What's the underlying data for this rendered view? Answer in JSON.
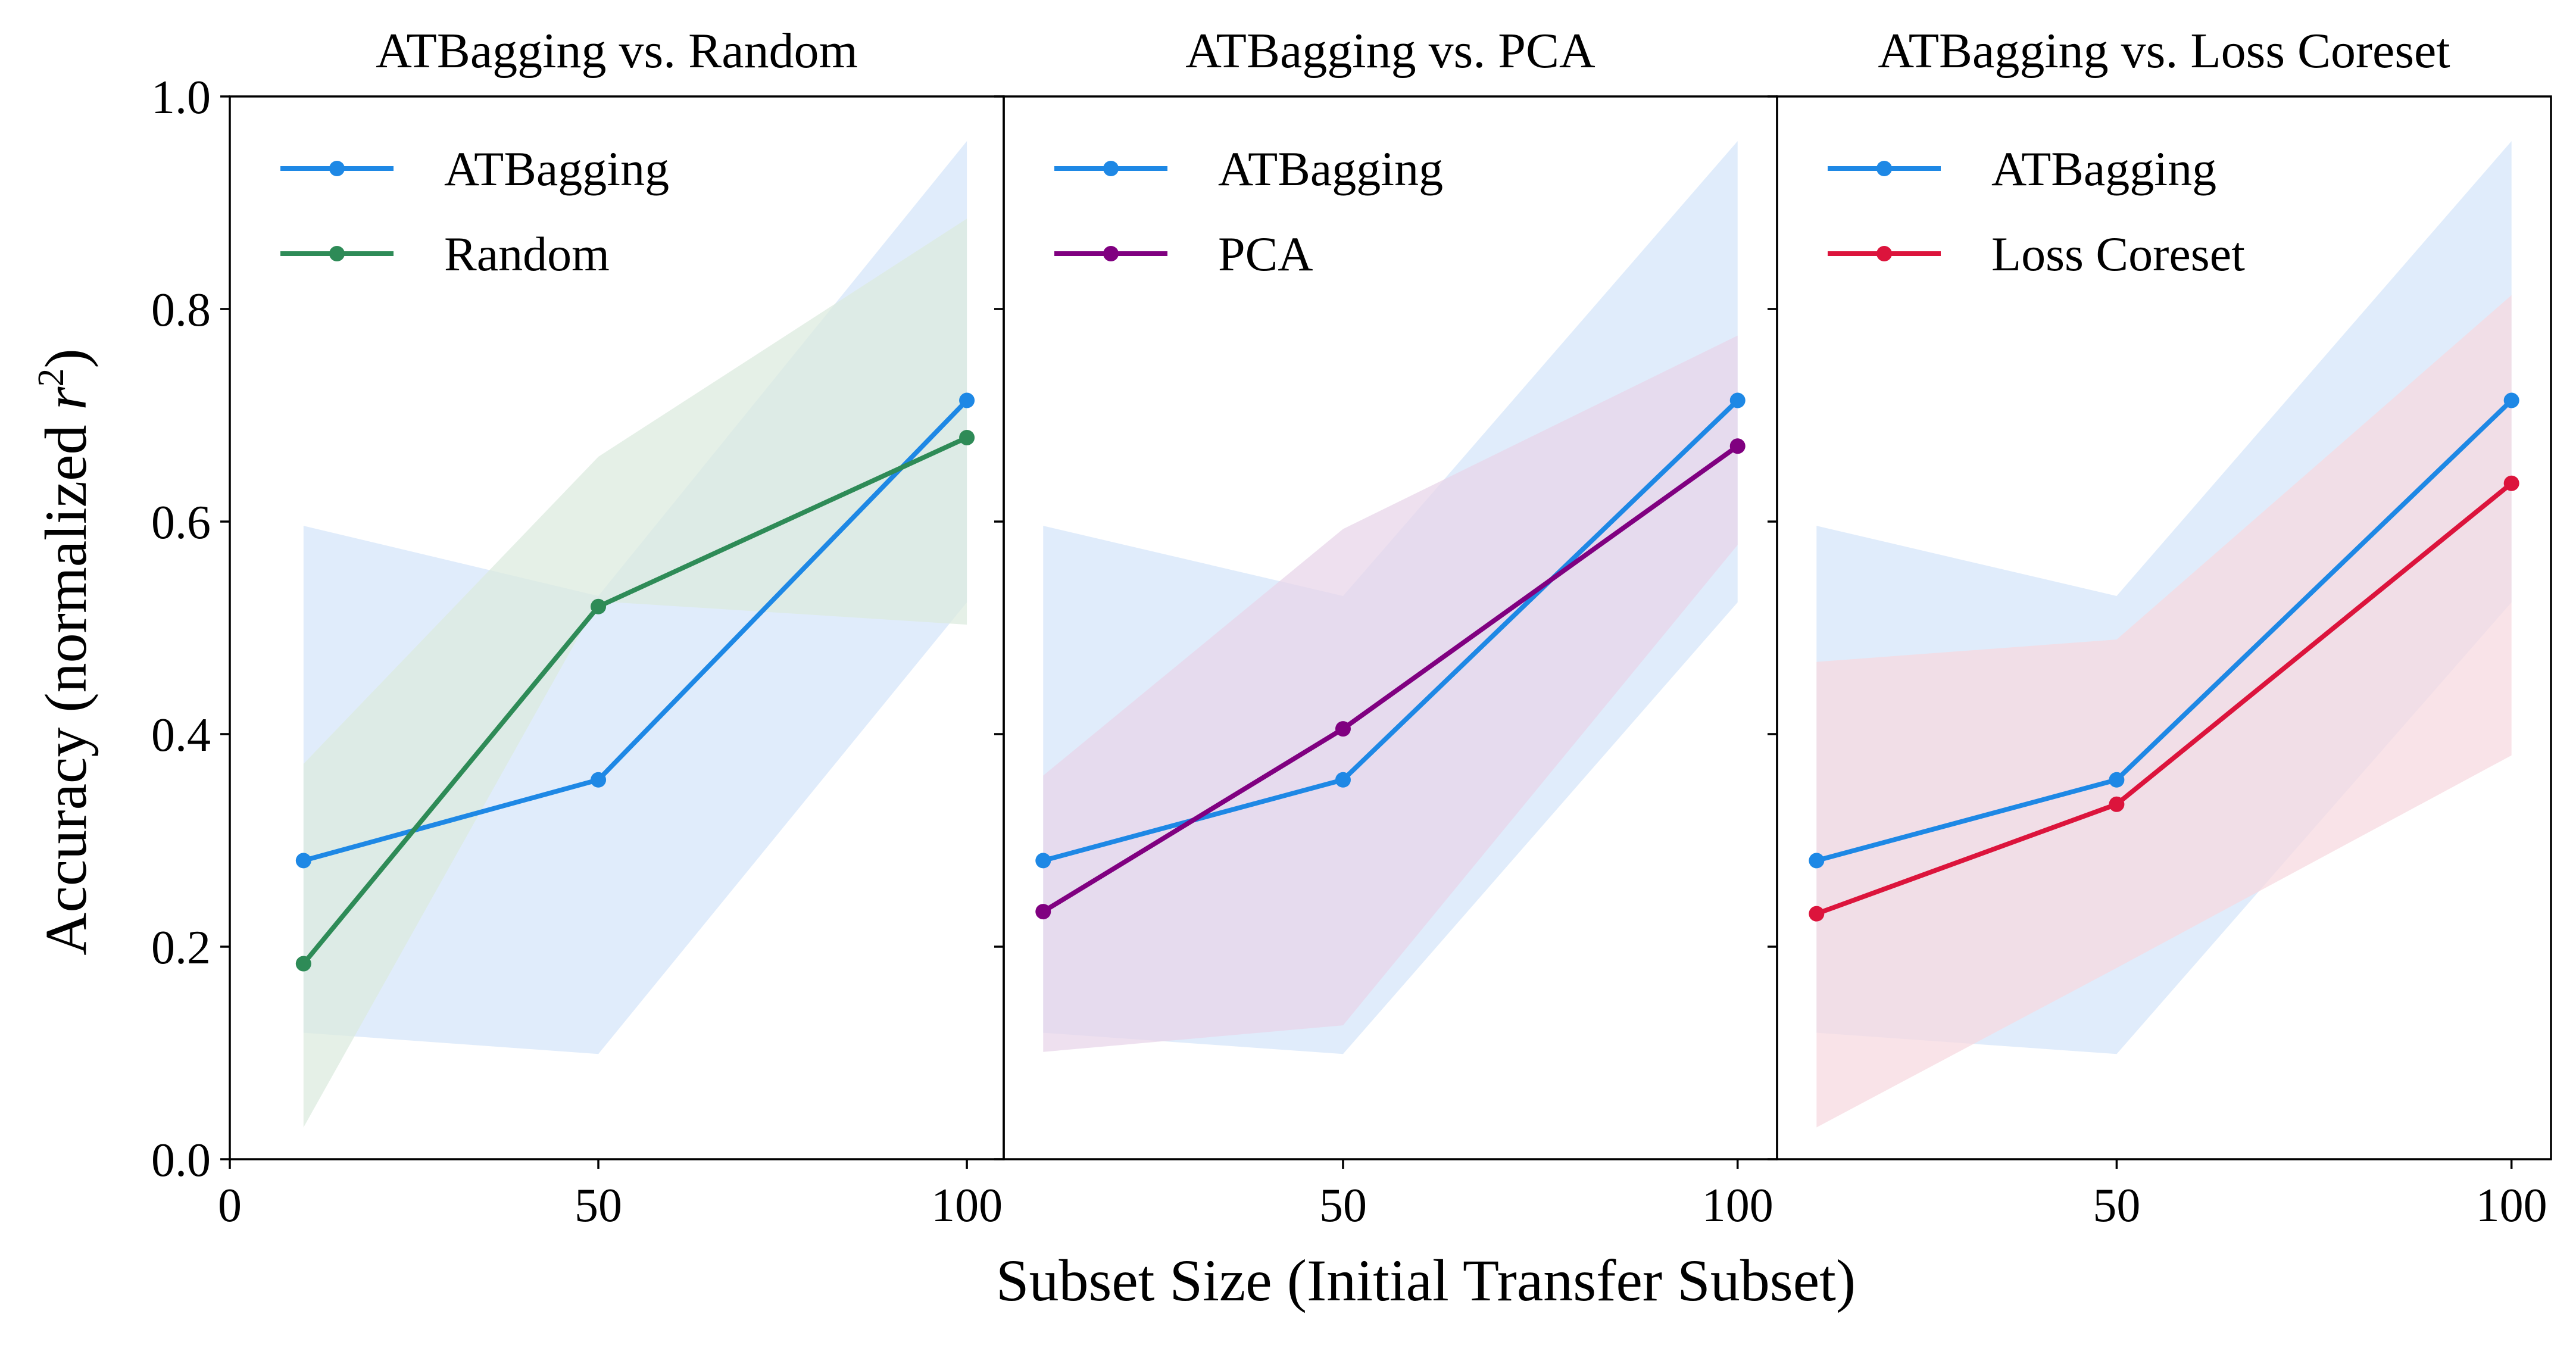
{
  "xlabel": "Subset Size (Initial Transfer Subset)",
  "ylabel_text": "Accuracy (normalized ",
  "ylabel_var": "r",
  "ylabel_exp": "2",
  "ylabel_close": ")",
  "chart_data": [
    {
      "type": "line",
      "title": "ATBagging vs. Random",
      "x_ticks": [
        0,
        50,
        100
      ],
      "y_ticks": [
        0.0,
        0.2,
        0.4,
        0.6,
        0.8,
        1.0
      ],
      "x_tick_labels": [
        "0",
        "50",
        "100"
      ],
      "y_tick_labels": [
        "0.0",
        "0.2",
        "0.4",
        "0.6",
        "0.8",
        "1.0"
      ],
      "xlim": [
        0,
        105
      ],
      "ylim": [
        0.0,
        1.0
      ],
      "legend_position": "top-left",
      "x": [
        10,
        50,
        100
      ],
      "series": [
        {
          "name": "ATBagging",
          "color": "#1e88e5",
          "band_color": "#d6e6fa",
          "values": [
            0.281,
            0.357,
            0.714
          ],
          "lower": [
            0.119,
            0.099,
            0.524
          ],
          "upper": [
            0.596,
            0.53,
            0.958
          ]
        },
        {
          "name": "Random",
          "color": "#2e8b57",
          "band_color": "#dcebdf",
          "values": [
            0.184,
            0.52,
            0.679
          ],
          "lower": [
            0.03,
            0.525,
            0.503
          ],
          "upper": [
            0.372,
            0.661,
            0.885
          ]
        }
      ]
    },
    {
      "type": "line",
      "title": "ATBagging vs. PCA",
      "x_ticks": [
        50,
        100
      ],
      "y_ticks": [
        0.0,
        0.2,
        0.4,
        0.6,
        0.8,
        1.0
      ],
      "x_tick_labels": [
        "50",
        "100"
      ],
      "y_tick_labels": [],
      "xlim": [
        7,
        105
      ],
      "ylim": [
        0.0,
        1.0
      ],
      "legend_position": "top-left",
      "x": [
        12,
        50,
        100
      ],
      "series": [
        {
          "name": "ATBagging",
          "color": "#1e88e5",
          "band_color": "#d6e6fa",
          "values": [
            0.281,
            0.357,
            0.714
          ],
          "lower": [
            0.119,
            0.099,
            0.524
          ],
          "upper": [
            0.596,
            0.53,
            0.958
          ]
        },
        {
          "name": "PCA",
          "color": "#800080",
          "band_color": "#e8d6ea",
          "values": [
            0.233,
            0.405,
            0.671
          ],
          "lower": [
            0.101,
            0.126,
            0.578
          ],
          "upper": [
            0.361,
            0.593,
            0.775
          ]
        }
      ]
    },
    {
      "type": "line",
      "title": "ATBagging vs. Loss Coreset",
      "x_ticks": [
        50,
        100
      ],
      "y_ticks": [
        0.0,
        0.2,
        0.4,
        0.6,
        0.8,
        1.0
      ],
      "x_tick_labels": [
        "50",
        "100"
      ],
      "y_tick_labels": [],
      "xlim": [
        7,
        105
      ],
      "ylim": [
        0.0,
        1.0
      ],
      "legend_position": "top-left",
      "x": [
        12,
        50,
        100
      ],
      "series": [
        {
          "name": "ATBagging",
          "color": "#1e88e5",
          "band_color": "#d6e6fa",
          "values": [
            0.281,
            0.357,
            0.714
          ],
          "lower": [
            0.119,
            0.099,
            0.524
          ],
          "upper": [
            0.596,
            0.53,
            0.958
          ]
        },
        {
          "name": "Loss Coreset",
          "color": "#dc143c",
          "band_color": "#f7d9e0",
          "values": [
            0.231,
            0.334,
            0.636
          ],
          "lower": [
            0.03,
            0.18,
            0.38
          ],
          "upper": [
            0.468,
            0.489,
            0.813
          ]
        }
      ]
    }
  ]
}
